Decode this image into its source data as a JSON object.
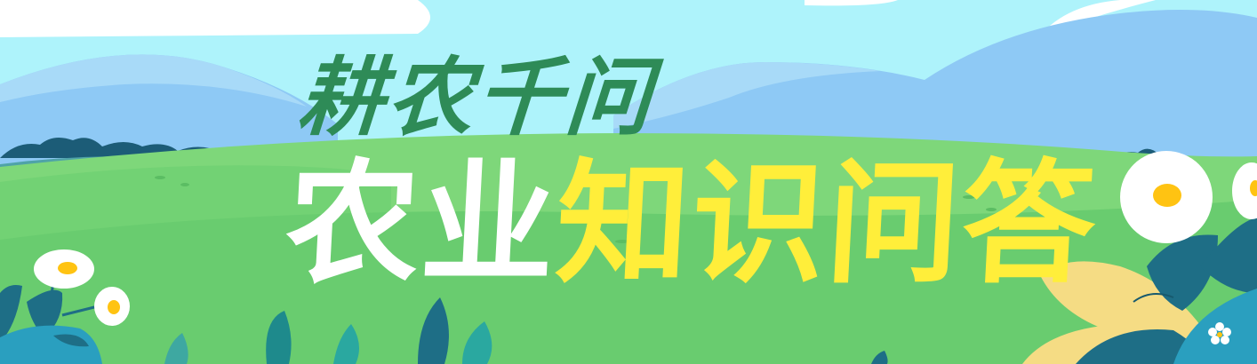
{
  "banner": {
    "title_main": "耕农千问",
    "title_sub_white": "农业",
    "title_sub_yellow": "知识问答"
  },
  "colors": {
    "sky": "#aef3fb",
    "mountain": "#8ec9f5",
    "hill_light": "#7ed77a",
    "hill_mid": "#69cc6f",
    "title_main": "#2e8b57",
    "title_white": "#ffffff",
    "title_yellow": "#ffee3a",
    "leaf_dark": "#1e6e86",
    "leaf_teal": "#2aa8a0",
    "leaf_yellow": "#f5dc84",
    "flower_center": "#ffc312"
  },
  "icons": [
    "cloud",
    "mountain",
    "hill",
    "bush",
    "daisy-flower",
    "leaf",
    "small-white-flower"
  ]
}
